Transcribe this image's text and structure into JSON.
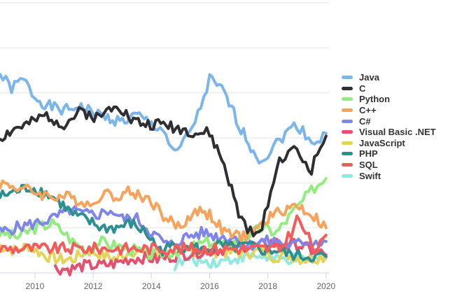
{
  "chart_data": {
    "type": "line",
    "title": "",
    "xlabel": "",
    "ylabel": "",
    "xlim": [
      2008.8,
      2020.1
    ],
    "ylim": [
      0,
      30
    ],
    "x_ticks": [
      "2010",
      "2012",
      "2014",
      "2016",
      "2018",
      "2020"
    ],
    "grid": true,
    "legend_position": "right",
    "series": [
      {
        "name": "Java",
        "color": "#7cb5ec",
        "points": [
          [
            2008.8,
            22
          ],
          [
            2009.2,
            20.5
          ],
          [
            2009.6,
            21.5
          ],
          [
            2010.0,
            19.5
          ],
          [
            2010.5,
            18.5
          ],
          [
            2011.0,
            18
          ],
          [
            2011.5,
            18.5
          ],
          [
            2012.0,
            17.8
          ],
          [
            2012.5,
            17.2
          ],
          [
            2013.0,
            16.8
          ],
          [
            2013.5,
            17.5
          ],
          [
            2014.0,
            16.5
          ],
          [
            2014.4,
            16
          ],
          [
            2014.8,
            13
          ],
          [
            2015.2,
            15
          ],
          [
            2015.6,
            17.5
          ],
          [
            2016.0,
            21.5
          ],
          [
            2016.5,
            20
          ],
          [
            2017.0,
            16.5
          ],
          [
            2017.5,
            13.5
          ],
          [
            2017.8,
            12.5
          ],
          [
            2018.2,
            14
          ],
          [
            2018.6,
            15.5
          ],
          [
            2019.0,
            16.5
          ],
          [
            2019.4,
            15
          ],
          [
            2019.7,
            14.5
          ],
          [
            2020.0,
            15.5
          ]
        ]
      },
      {
        "name": "C",
        "color": "#2f2f33",
        "points": [
          [
            2008.8,
            15
          ],
          [
            2009.3,
            16
          ],
          [
            2009.8,
            16.5
          ],
          [
            2010.4,
            17.5
          ],
          [
            2011.0,
            16.5
          ],
          [
            2011.6,
            18
          ],
          [
            2012.2,
            17.2
          ],
          [
            2012.8,
            19
          ],
          [
            2013.3,
            17
          ],
          [
            2013.8,
            16.5
          ],
          [
            2014.5,
            16.5
          ],
          [
            2015.0,
            16
          ],
          [
            2015.6,
            15.5
          ],
          [
            2016.0,
            15.5
          ],
          [
            2016.5,
            12
          ],
          [
            2017.0,
            6.5
          ],
          [
            2017.4,
            4.5
          ],
          [
            2017.7,
            4
          ],
          [
            2018.0,
            8
          ],
          [
            2018.4,
            12.5
          ],
          [
            2018.8,
            14
          ],
          [
            2019.2,
            12.5
          ],
          [
            2019.5,
            11.5
          ],
          [
            2019.8,
            14
          ],
          [
            2020.0,
            15.2
          ]
        ]
      },
      {
        "name": "Python",
        "color": "#90ed7d",
        "points": [
          [
            2008.8,
            4.5
          ],
          [
            2009.4,
            4
          ],
          [
            2010.0,
            5
          ],
          [
            2010.6,
            5.5
          ],
          [
            2011.0,
            4.5
          ],
          [
            2011.3,
            3.5
          ],
          [
            2011.8,
            2.5
          ],
          [
            2012.2,
            3.5
          ],
          [
            2012.8,
            3
          ],
          [
            2013.5,
            2.5
          ],
          [
            2014.0,
            2
          ],
          [
            2015.0,
            2.5
          ],
          [
            2016.0,
            3.5
          ],
          [
            2016.6,
            3
          ],
          [
            2017.2,
            4
          ],
          [
            2017.8,
            5
          ],
          [
            2018.3,
            4.5
          ],
          [
            2018.8,
            6.5
          ],
          [
            2019.2,
            8
          ],
          [
            2019.6,
            9.5
          ],
          [
            2020.0,
            10.5
          ]
        ]
      },
      {
        "name": "C++",
        "color": "#f7a35c",
        "points": [
          [
            2008.8,
            10
          ],
          [
            2009.4,
            9.5
          ],
          [
            2010.0,
            9
          ],
          [
            2010.5,
            8.5
          ],
          [
            2011.0,
            8.5
          ],
          [
            2011.6,
            8
          ],
          [
            2012.0,
            7.5
          ],
          [
            2012.3,
            9
          ],
          [
            2012.7,
            8.5
          ],
          [
            2013.2,
            9
          ],
          [
            2013.7,
            8.5
          ],
          [
            2014.0,
            8
          ],
          [
            2014.5,
            6
          ],
          [
            2015.0,
            5
          ],
          [
            2015.5,
            7
          ],
          [
            2016.0,
            6.5
          ],
          [
            2016.5,
            4.5
          ],
          [
            2017.0,
            4
          ],
          [
            2017.5,
            4.5
          ],
          [
            2018.0,
            6
          ],
          [
            2018.5,
            7
          ],
          [
            2019.0,
            7.5
          ],
          [
            2019.5,
            6.5
          ],
          [
            2020.0,
            5
          ]
        ]
      },
      {
        "name": "C#",
        "color": "#8085e9",
        "points": [
          [
            2008.8,
            4.5
          ],
          [
            2009.3,
            5
          ],
          [
            2010.0,
            5.5
          ],
          [
            2010.6,
            6
          ],
          [
            2011.2,
            7
          ],
          [
            2011.7,
            6.5
          ],
          [
            2012.2,
            6.5
          ],
          [
            2012.6,
            7
          ],
          [
            2013.0,
            6
          ],
          [
            2013.5,
            6
          ],
          [
            2014.0,
            4.5
          ],
          [
            2014.6,
            3
          ],
          [
            2015.2,
            4
          ],
          [
            2015.8,
            4.5
          ],
          [
            2016.3,
            4
          ],
          [
            2016.8,
            4
          ],
          [
            2017.3,
            3
          ],
          [
            2017.8,
            3.5
          ],
          [
            2018.3,
            3.5
          ],
          [
            2018.8,
            3
          ],
          [
            2019.3,
            3.5
          ],
          [
            2020.0,
            3.5
          ]
        ]
      },
      {
        "name": "Visual Basic .NET",
        "color": "#e4516e",
        "points": [
          [
            2010.7,
            0.5
          ],
          [
            2011.2,
            0.4
          ],
          [
            2011.7,
            0.8
          ],
          [
            2012.2,
            0.8
          ],
          [
            2012.7,
            1
          ],
          [
            2013.2,
            1.5
          ],
          [
            2013.7,
            1.7
          ],
          [
            2014.2,
            1.5
          ],
          [
            2015.0,
            2
          ],
          [
            2015.5,
            2.3
          ],
          [
            2016.2,
            2.5
          ],
          [
            2016.7,
            2.8
          ],
          [
            2017.2,
            3
          ],
          [
            2017.7,
            3
          ],
          [
            2018.2,
            3.5
          ],
          [
            2018.6,
            3
          ],
          [
            2019.0,
            3.2
          ],
          [
            2019.5,
            2.5
          ],
          [
            2020.0,
            2
          ]
        ]
      },
      {
        "name": "JavaScript",
        "color": "#e4d354",
        "points": [
          [
            2008.8,
            3
          ],
          [
            2009.3,
            2.5
          ],
          [
            2009.8,
            3
          ],
          [
            2010.3,
            2
          ],
          [
            2010.8,
            1.5
          ],
          [
            2011.3,
            1.5
          ],
          [
            2011.8,
            2.5
          ],
          [
            2012.3,
            2
          ],
          [
            2012.8,
            1.5
          ],
          [
            2013.3,
            2.5
          ],
          [
            2013.8,
            2
          ],
          [
            2014.3,
            2
          ],
          [
            2014.8,
            2.2
          ],
          [
            2015.3,
            2.5
          ],
          [
            2015.8,
            2.3
          ],
          [
            2016.3,
            2.4
          ],
          [
            2016.8,
            2.2
          ],
          [
            2017.3,
            2.3
          ],
          [
            2017.8,
            2.4
          ],
          [
            2018.2,
            1.8
          ],
          [
            2018.7,
            2
          ],
          [
            2019.2,
            1.5
          ],
          [
            2019.7,
            1.7
          ],
          [
            2020.0,
            1.8
          ]
        ]
      },
      {
        "name": "PHP",
        "color": "#2b908f",
        "points": [
          [
            2008.8,
            8.5
          ],
          [
            2009.3,
            9
          ],
          [
            2009.8,
            9.5
          ],
          [
            2010.3,
            9
          ],
          [
            2010.8,
            8
          ],
          [
            2011.3,
            6.5
          ],
          [
            2011.8,
            5.8
          ],
          [
            2012.3,
            5
          ],
          [
            2012.8,
            5
          ],
          [
            2013.3,
            5.5
          ],
          [
            2013.8,
            4.5
          ],
          [
            2014.3,
            2.5
          ],
          [
            2014.8,
            3
          ],
          [
            2015.3,
            3
          ],
          [
            2015.8,
            2.5
          ],
          [
            2016.3,
            3
          ],
          [
            2016.8,
            2.8
          ],
          [
            2017.3,
            3
          ],
          [
            2017.8,
            2.5
          ],
          [
            2018.3,
            2.5
          ],
          [
            2018.8,
            2
          ],
          [
            2019.3,
            1.8
          ],
          [
            2020.0,
            1.8
          ]
        ]
      },
      {
        "name": "SQL",
        "color": "#f45b5b",
        "points": [
          [
            2008.8,
            2.7
          ],
          [
            2017.9,
            2.7
          ],
          [
            2018.4,
            2.6
          ],
          [
            2018.8,
            4.5
          ],
          [
            2019.0,
            6
          ],
          [
            2019.3,
            4.5
          ],
          [
            2019.6,
            2.5
          ],
          [
            2019.8,
            3
          ],
          [
            2020.0,
            4.2
          ]
        ]
      },
      {
        "name": "Swift",
        "color": "#91e8e1",
        "points": [
          [
            2014.8,
            0.9
          ],
          [
            2015.3,
            1.5
          ],
          [
            2015.8,
            1.3
          ],
          [
            2016.3,
            1.2
          ],
          [
            2016.8,
            1.6
          ],
          [
            2017.3,
            1.8
          ],
          [
            2017.8,
            1.9
          ],
          [
            2018.3,
            1.4
          ],
          [
            2018.8,
            1.5
          ],
          [
            2019.3,
            1.4
          ],
          [
            2019.7,
            1.5
          ],
          [
            2020.0,
            1.6
          ]
        ]
      }
    ]
  }
}
